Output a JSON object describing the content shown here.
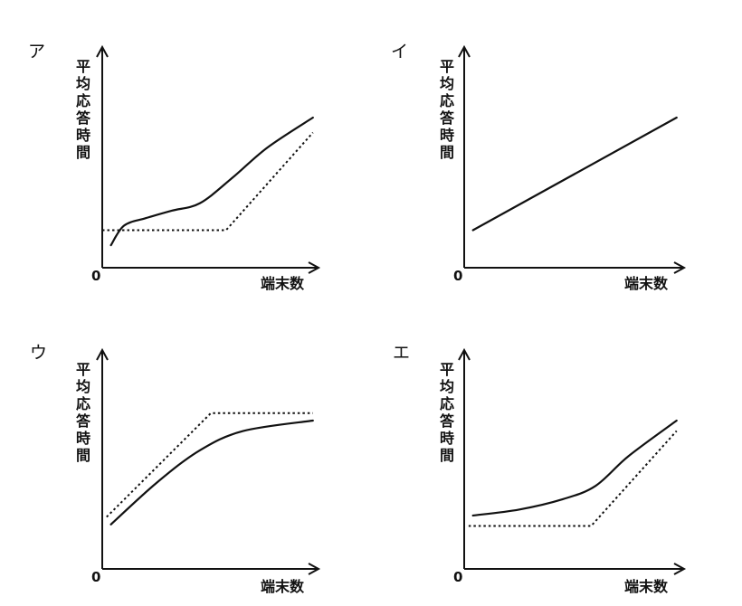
{
  "x_axis_label": "端末数",
  "y_axis_label": "平均応答時間",
  "origin_label": "0",
  "chart_data": [
    {
      "label": "ア",
      "type": "line",
      "xlabel": "端末数",
      "ylabel": "平均応答時間",
      "series": [
        {
          "style": "solid",
          "points": [
            [
              0.04,
              0.15
            ],
            [
              0.1,
              0.28
            ],
            [
              0.2,
              0.33
            ],
            [
              0.32,
              0.38
            ],
            [
              0.45,
              0.43
            ],
            [
              0.6,
              0.6
            ],
            [
              0.76,
              0.8
            ],
            [
              0.97,
              1.0
            ]
          ]
        },
        {
          "style": "dotted",
          "points": [
            [
              0.0,
              0.25
            ],
            [
              0.57,
              0.25
            ],
            [
              0.97,
              0.9
            ]
          ]
        }
      ]
    },
    {
      "label": "イ",
      "type": "line",
      "xlabel": "端末数",
      "ylabel": "平均応答時間",
      "series": [
        {
          "style": "solid",
          "points": [
            [
              0.04,
              0.25
            ],
            [
              0.97,
              1.0
            ]
          ]
        }
      ]
    },
    {
      "label": "ウ",
      "type": "line",
      "xlabel": "端末数",
      "ylabel": "平均応答時間",
      "series": [
        {
          "style": "solid",
          "points": [
            [
              0.04,
              0.3
            ],
            [
              0.25,
              0.58
            ],
            [
              0.45,
              0.8
            ],
            [
              0.65,
              0.93
            ],
            [
              0.97,
              1.0
            ]
          ]
        },
        {
          "style": "dotted",
          "points": [
            [
              0.02,
              0.35
            ],
            [
              0.5,
              1.05
            ],
            [
              0.97,
              1.05
            ]
          ]
        }
      ]
    },
    {
      "label": "エ",
      "type": "line",
      "xlabel": "端末数",
      "ylabel": "平均応答時間",
      "series": [
        {
          "style": "solid",
          "points": [
            [
              0.04,
              0.36
            ],
            [
              0.25,
              0.4
            ],
            [
              0.45,
              0.47
            ],
            [
              0.6,
              0.56
            ],
            [
              0.75,
              0.76
            ],
            [
              0.97,
              1.0
            ]
          ]
        },
        {
          "style": "dotted",
          "points": [
            [
              0.02,
              0.29
            ],
            [
              0.58,
              0.29
            ],
            [
              0.97,
              0.93
            ]
          ]
        }
      ]
    }
  ]
}
